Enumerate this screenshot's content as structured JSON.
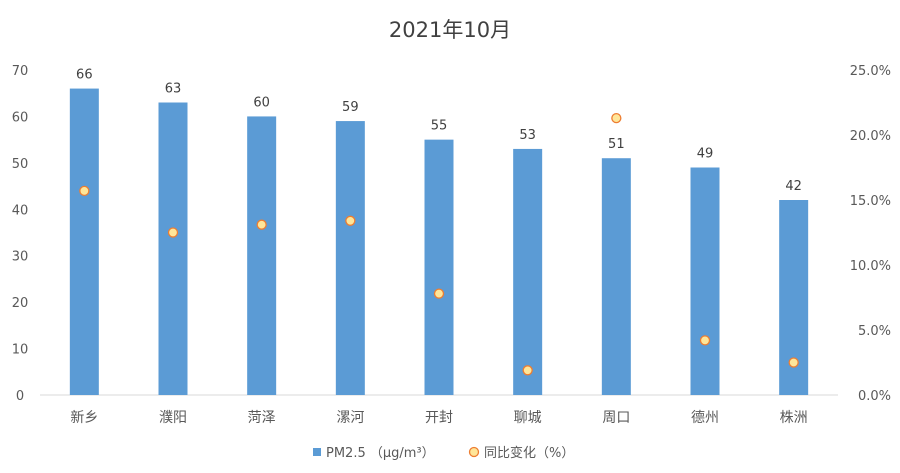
{
  "chart_data": {
    "type": "bar",
    "title": "2021年10月",
    "categories": [
      "新乡",
      "濮阳",
      "菏泽",
      "漯河",
      "开封",
      "聊城",
      "周口",
      "德州",
      "株洲"
    ],
    "series": [
      {
        "name": "PM2.5 （μg/m³）",
        "type": "bar",
        "axis": "left",
        "color": "#5B9BD5",
        "values": [
          66,
          63,
          60,
          59,
          55,
          53,
          51,
          49,
          42
        ]
      },
      {
        "name": "同比变化（%）",
        "type": "scatter",
        "axis": "right",
        "color": "#F5B342",
        "values": [
          15.7,
          12.5,
          13.1,
          13.4,
          7.8,
          1.9,
          21.3,
          4.2,
          2.5
        ]
      }
    ],
    "y_left": {
      "ylim": [
        0,
        70
      ],
      "ticks": [
        "0",
        "10",
        "20",
        "30",
        "40",
        "50",
        "60",
        "70"
      ]
    },
    "y_right": {
      "ylim": [
        0,
        25
      ],
      "ticks": [
        "0.0%",
        "5.0%",
        "10.0%",
        "15.0%",
        "20.0%",
        "25.0%"
      ]
    },
    "grid": false,
    "legend_position": "bottom"
  }
}
